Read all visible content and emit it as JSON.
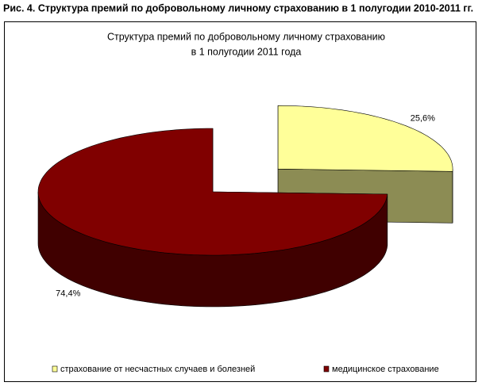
{
  "caption": "Рис. 4. Структура премий по добровольному личному страхованию в 1 полугодии 2010-2011 гг.",
  "chart_data": {
    "type": "pie3d",
    "title": [
      "Структура премий по добровольному личному страхованию",
      "в 1 полугодии 2011 года"
    ],
    "categories": [
      "страхование от несчастных случаев и болезней",
      "медицинское страхование"
    ],
    "values": [
      25.6,
      74.4
    ],
    "value_labels": [
      "25,6%",
      "74,4%"
    ],
    "colors": [
      "#ffff99",
      "#800000"
    ],
    "exploded": [
      true,
      false
    ],
    "legend": "bottom"
  }
}
